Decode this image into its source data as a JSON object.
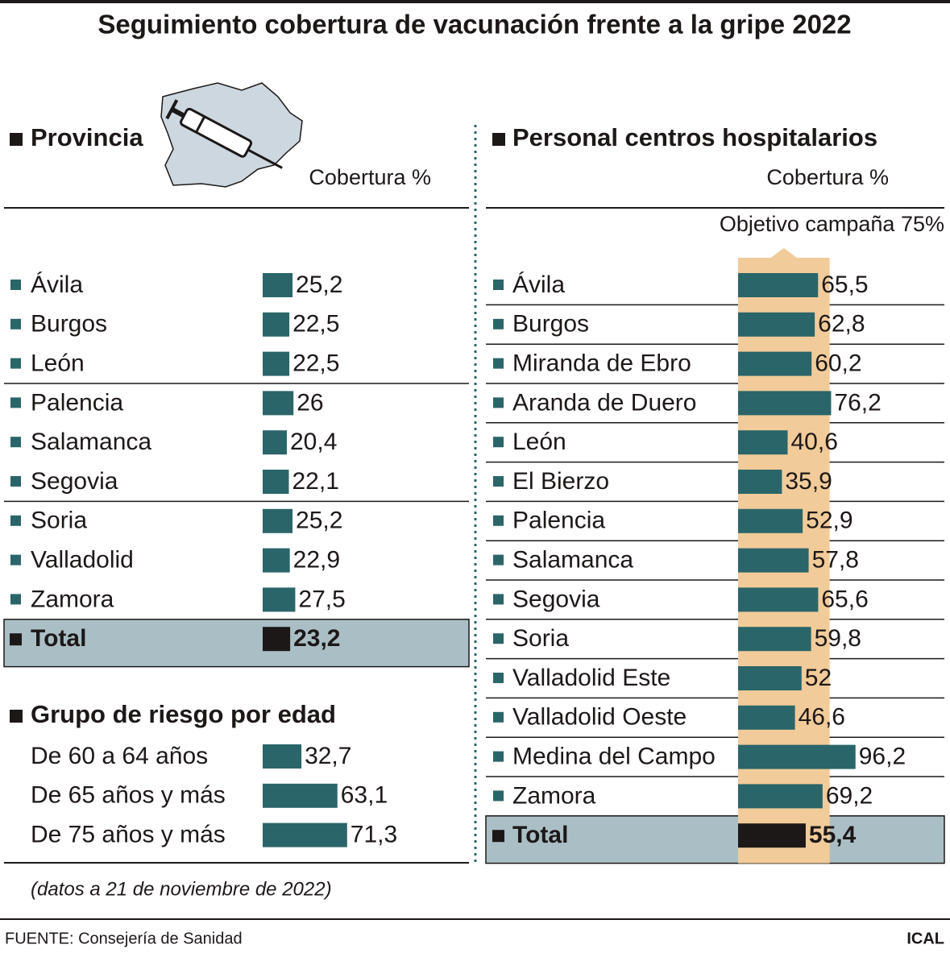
{
  "title": "Seguimiento cobertura de vacunación frente a la gripe 2022",
  "note": "(datos a 21 de noviembre de 2022)",
  "source": "FUENTE: Consejería de Sanidad",
  "credit": "ICAL",
  "chart_data": [
    {
      "type": "bar",
      "orientation": "horizontal",
      "title": "Provincia",
      "axis_label": "Cobertura %",
      "categories": [
        "Ávila",
        "Burgos",
        "León",
        "Palencia",
        "Salamanca",
        "Segovia",
        "Soria",
        "Valladolid",
        "Zamora"
      ],
      "values": [
        25.2,
        22.5,
        22.5,
        26,
        20.4,
        22.1,
        25.2,
        22.9,
        27.5
      ],
      "value_labels": [
        "25,2",
        "22,5",
        "22,5",
        "26",
        "20,4",
        "22,1",
        "25,2",
        "22,9",
        "27,5"
      ],
      "color": "#2a6569",
      "total": {
        "name": "Total",
        "value": 23.2,
        "value_label": "23,2",
        "color": "#1d1818"
      }
    },
    {
      "type": "bar",
      "orientation": "horizontal",
      "title": "Grupo de riesgo por edad",
      "categories": [
        "De 60 a 64 años",
        "De 65 años y más",
        "De 75 años y más"
      ],
      "values": [
        32.7,
        63.1,
        71.3
      ],
      "value_labels": [
        "32,7",
        "63,1",
        "71,3"
      ],
      "color": "#2a6569"
    },
    {
      "type": "bar",
      "orientation": "horizontal",
      "title": "Personal centros hospitalarios",
      "axis_label": "Cobertura %",
      "target": {
        "label": "Objetivo campaña 75%",
        "value": 75,
        "color": "#f1cb99"
      },
      "categories": [
        "Ávila",
        "Burgos",
        "Miranda de Ebro",
        "Aranda de Duero",
        "León",
        "El Bierzo",
        "Palencia",
        "Salamanca",
        "Segovia",
        "Soria",
        "Valladolid Este",
        "Valladolid Oeste",
        "Medina del Campo",
        "Zamora"
      ],
      "values": [
        65.5,
        62.8,
        60.2,
        76.2,
        40.6,
        35.9,
        52.9,
        57.8,
        65.6,
        59.8,
        52,
        46.6,
        96.2,
        69.2
      ],
      "value_labels": [
        "65,5",
        "62,8",
        "60,2",
        "76,2",
        "40,6",
        "35,9",
        "52,9",
        "57,8",
        "65,6",
        "59,8",
        "52",
        "46,6",
        "96,2",
        "69,2"
      ],
      "color": "#2a6569",
      "total": {
        "name": "Total",
        "value": 55.4,
        "value_label": "55,4",
        "color": "#1d1818"
      }
    }
  ]
}
